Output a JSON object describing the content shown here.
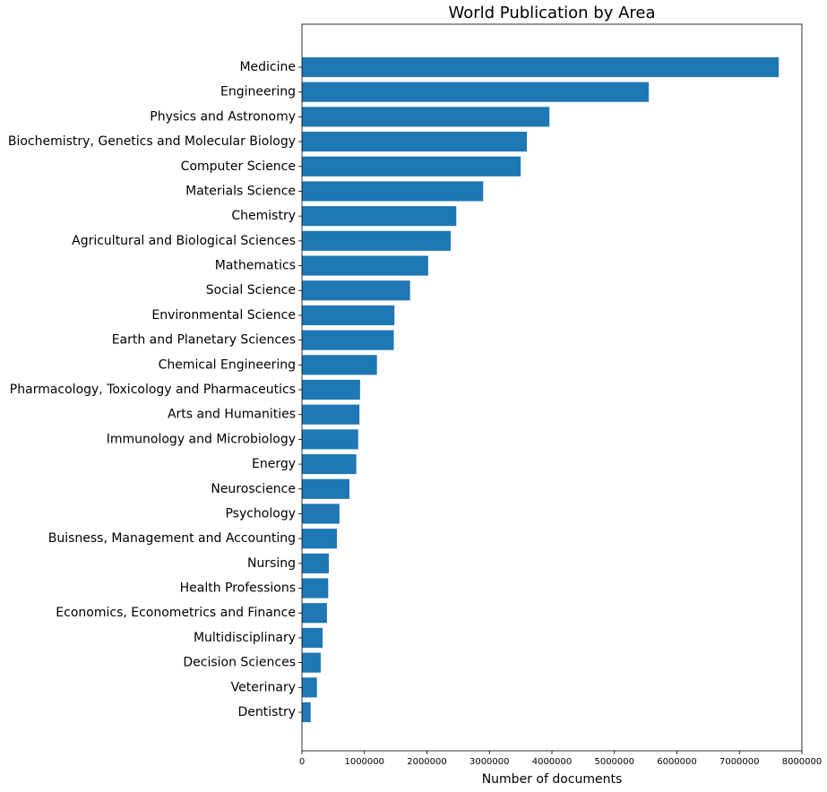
{
  "chart_data": {
    "type": "barh",
    "title": "World Publication by Area",
    "x_label": "Number of documents",
    "categories": [
      "Medicine",
      "Engineering",
      "Physics and Astronomy",
      "Biochemistry, Genetics and Molecular Biology",
      "Computer Science",
      "Materials Science",
      "Chemistry",
      "Agricultural and Biological Sciences",
      "Mathematics",
      "Social Science",
      "Environmental Science",
      "Earth and Planetary Sciences",
      "Chemical Engineering",
      "Pharmacology, Toxicology and Pharmaceutics",
      "Arts and Humanities",
      "Immunology and Microbiology",
      "Energy",
      "Neuroscience",
      "Psychology",
      "Buisness, Management and Accounting",
      "Nursing",
      "Health Professions",
      "Economics, Econometrics and Finance",
      "Multidisciplinary",
      "Decision Sciences",
      "Veterinary",
      "Dentistry"
    ],
    "values": [
      7630000,
      5550000,
      3960000,
      3600000,
      3500000,
      2900000,
      2470000,
      2380000,
      2020000,
      1730000,
      1480000,
      1470000,
      1200000,
      930000,
      920000,
      900000,
      870000,
      760000,
      600000,
      560000,
      430000,
      420000,
      400000,
      330000,
      300000,
      240000,
      140000
    ],
    "color": "#1f77b4",
    "xlim": [
      0,
      8000000
    ],
    "xticks": [
      0,
      1000000,
      2000000,
      3000000,
      4000000,
      5000000,
      6000000,
      7000000,
      8000000
    ]
  }
}
